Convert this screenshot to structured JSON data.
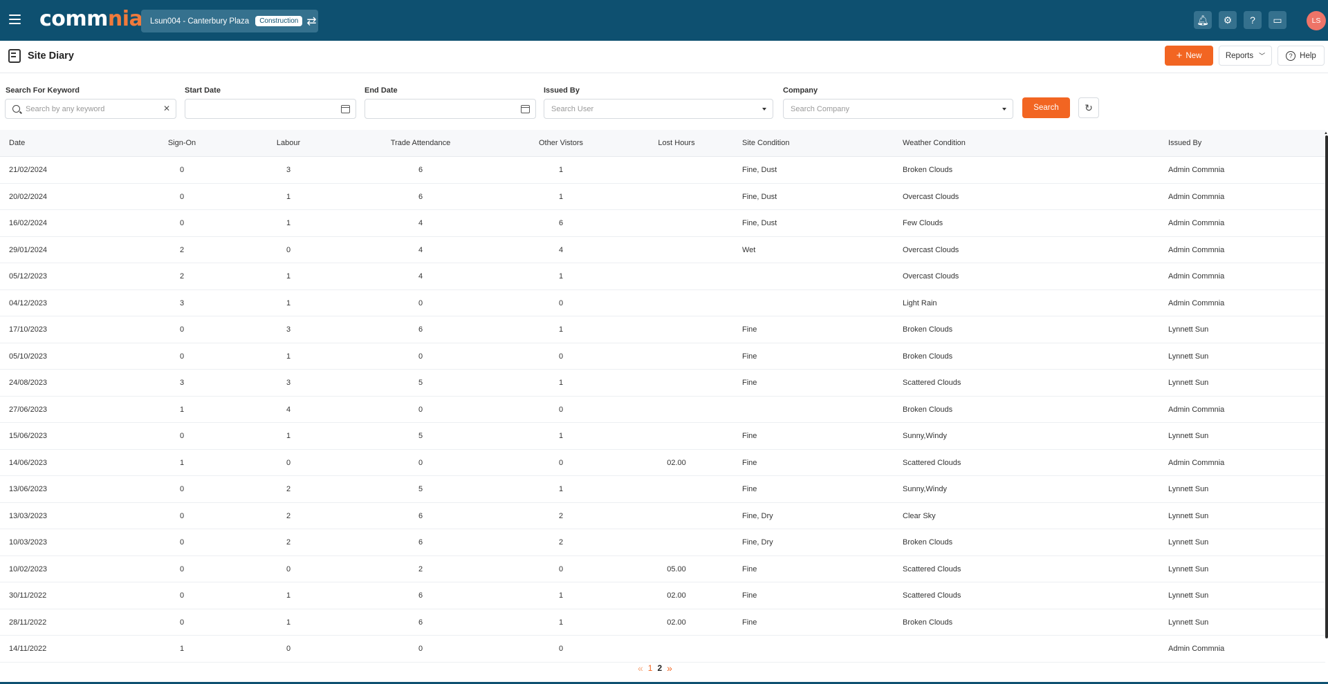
{
  "topbar": {
    "logo_part1": "comm",
    "logo_part2": "nia",
    "project_name": "Lsun004 - Canterbury Plaza",
    "project_badge": "Construction",
    "avatar_initials": "LS",
    "colors": {
      "bar": "#0e5070",
      "accent": "#f26522"
    }
  },
  "page": {
    "title": "Site Diary",
    "new_label": "New",
    "reports_label": "Reports",
    "help_label": "Help"
  },
  "filters": {
    "keyword_label": "Search For Keyword",
    "keyword_placeholder": "Search by any keyword",
    "start_label": "Start Date",
    "start_value": "",
    "end_label": "End Date",
    "end_value": "",
    "issued_label": "Issued By",
    "issued_placeholder": "Search User",
    "company_label": "Company",
    "company_placeholder": "Search Company",
    "search_label": "Search"
  },
  "table": {
    "headers": {
      "date": "Date",
      "signon": "Sign-On",
      "labour": "Labour",
      "trade": "Trade Attendance",
      "visitors": "Other Vistors",
      "lost": "Lost Hours",
      "site": "Site Condition",
      "weather": "Weather Condition",
      "issued": "Issued By"
    },
    "rows": [
      {
        "date": "21/02/2024",
        "signon": "0",
        "labour": "3",
        "trade": "6",
        "visitors": "1",
        "lost": "",
        "site": "Fine, Dust",
        "weather": "Broken Clouds",
        "issued": "Admin Commnia"
      },
      {
        "date": "20/02/2024",
        "signon": "0",
        "labour": "1",
        "trade": "6",
        "visitors": "1",
        "lost": "",
        "site": "Fine, Dust",
        "weather": "Overcast Clouds",
        "issued": "Admin Commnia"
      },
      {
        "date": "16/02/2024",
        "signon": "0",
        "labour": "1",
        "trade": "4",
        "visitors": "6",
        "lost": "",
        "site": "Fine, Dust",
        "weather": "Few Clouds",
        "issued": "Admin Commnia"
      },
      {
        "date": "29/01/2024",
        "signon": "2",
        "labour": "0",
        "trade": "4",
        "visitors": "4",
        "lost": "",
        "site": "Wet",
        "weather": "Overcast Clouds",
        "issued": "Admin Commnia"
      },
      {
        "date": "05/12/2023",
        "signon": "2",
        "labour": "1",
        "trade": "4",
        "visitors": "1",
        "lost": "",
        "site": "",
        "weather": "Overcast Clouds",
        "issued": "Admin Commnia"
      },
      {
        "date": "04/12/2023",
        "signon": "3",
        "labour": "1",
        "trade": "0",
        "visitors": "0",
        "lost": "",
        "site": "",
        "weather": "Light Rain",
        "issued": "Admin Commnia"
      },
      {
        "date": "17/10/2023",
        "signon": "0",
        "labour": "3",
        "trade": "6",
        "visitors": "1",
        "lost": "",
        "site": "Fine",
        "weather": "Broken Clouds",
        "issued": "Lynnett Sun"
      },
      {
        "date": "05/10/2023",
        "signon": "0",
        "labour": "1",
        "trade": "0",
        "visitors": "0",
        "lost": "",
        "site": "Fine",
        "weather": "Broken Clouds",
        "issued": "Lynnett Sun"
      },
      {
        "date": "24/08/2023",
        "signon": "3",
        "labour": "3",
        "trade": "5",
        "visitors": "1",
        "lost": "",
        "site": "Fine",
        "weather": "Scattered Clouds",
        "issued": "Lynnett Sun"
      },
      {
        "date": "27/06/2023",
        "signon": "1",
        "labour": "4",
        "trade": "0",
        "visitors": "0",
        "lost": "",
        "site": "",
        "weather": "Broken Clouds",
        "issued": "Admin Commnia"
      },
      {
        "date": "15/06/2023",
        "signon": "0",
        "labour": "1",
        "trade": "5",
        "visitors": "1",
        "lost": "",
        "site": "Fine",
        "weather": "Sunny,Windy",
        "issued": "Lynnett Sun"
      },
      {
        "date": "14/06/2023",
        "signon": "1",
        "labour": "0",
        "trade": "0",
        "visitors": "0",
        "lost": "02.00",
        "site": "Fine",
        "weather": "Scattered Clouds",
        "issued": "Admin Commnia"
      },
      {
        "date": "13/06/2023",
        "signon": "0",
        "labour": "2",
        "trade": "5",
        "visitors": "1",
        "lost": "",
        "site": "Fine",
        "weather": "Sunny,Windy",
        "issued": "Lynnett Sun"
      },
      {
        "date": "13/03/2023",
        "signon": "0",
        "labour": "2",
        "trade": "6",
        "visitors": "2",
        "lost": "",
        "site": "Fine, Dry",
        "weather": "Clear Sky",
        "issued": "Lynnett Sun"
      },
      {
        "date": "10/03/2023",
        "signon": "0",
        "labour": "2",
        "trade": "6",
        "visitors": "2",
        "lost": "",
        "site": "Fine, Dry",
        "weather": "Broken Clouds",
        "issued": "Lynnett Sun"
      },
      {
        "date": "10/02/2023",
        "signon": "0",
        "labour": "0",
        "trade": "2",
        "visitors": "0",
        "lost": "05.00",
        "site": "Fine",
        "weather": "Scattered Clouds",
        "issued": "Lynnett Sun"
      },
      {
        "date": "30/11/2022",
        "signon": "0",
        "labour": "1",
        "trade": "6",
        "visitors": "1",
        "lost": "02.00",
        "site": "Fine",
        "weather": "Scattered Clouds",
        "issued": "Lynnett Sun"
      },
      {
        "date": "28/11/2022",
        "signon": "0",
        "labour": "1",
        "trade": "6",
        "visitors": "1",
        "lost": "02.00",
        "site": "Fine",
        "weather": "Broken Clouds",
        "issued": "Lynnett Sun"
      },
      {
        "date": "14/11/2022",
        "signon": "1",
        "labour": "0",
        "trade": "0",
        "visitors": "0",
        "lost": "",
        "site": "",
        "weather": "",
        "issued": "Admin Commnia"
      }
    ]
  },
  "pagination": {
    "prev": "«",
    "next": "»",
    "pages": [
      "1",
      "2"
    ],
    "current": "2"
  }
}
